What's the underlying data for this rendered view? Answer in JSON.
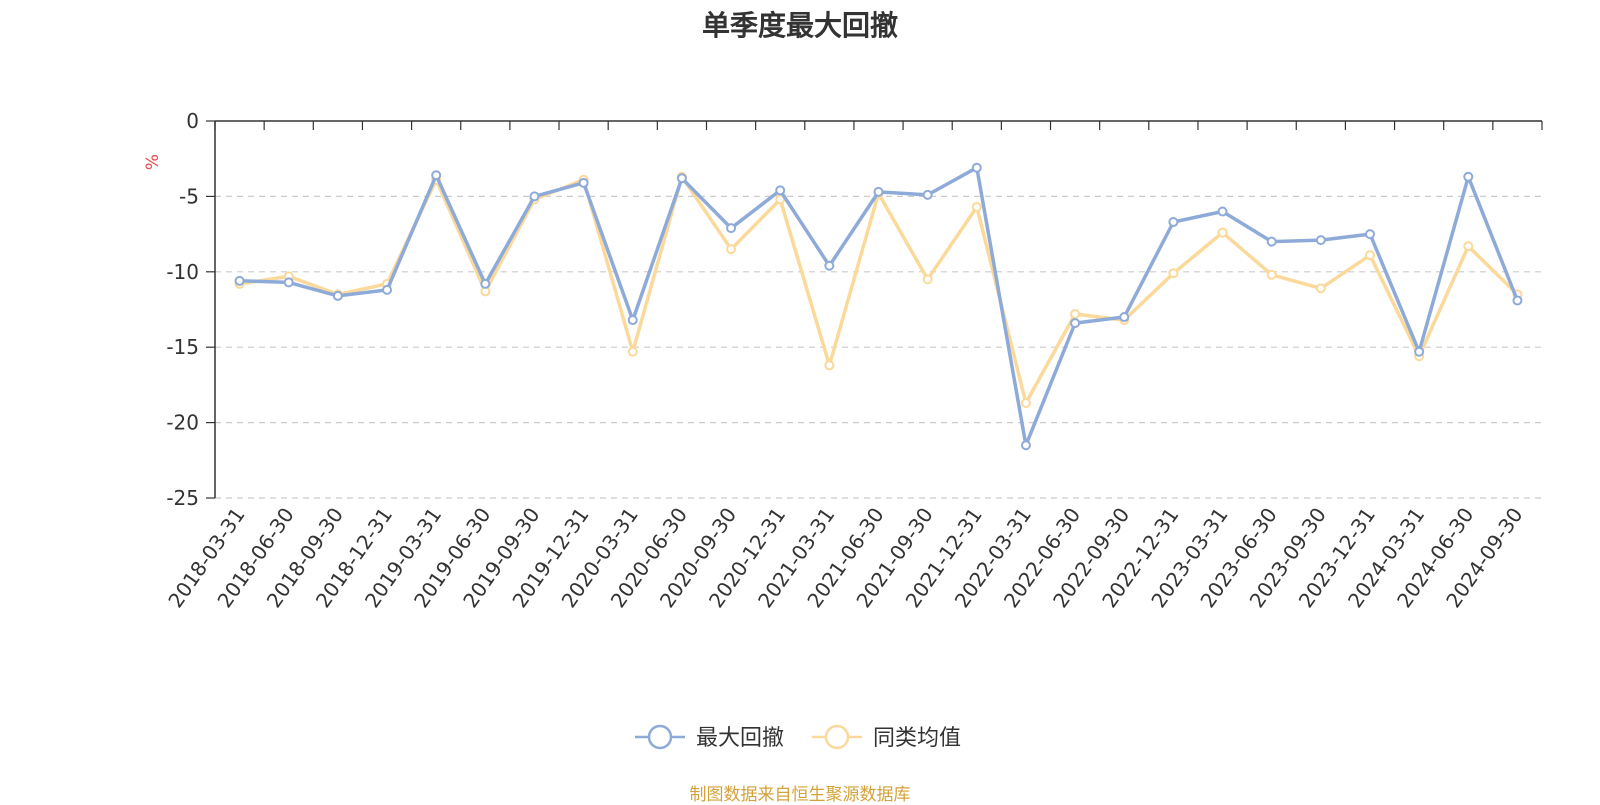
{
  "chart_data": {
    "type": "line",
    "title": "单季度最大回撤",
    "ylabel": "%",
    "ylim": [
      -25,
      0
    ],
    "yticks": [
      0,
      -5,
      -10,
      -15,
      -20,
      -25
    ],
    "grid": true,
    "legend_position": "bottom-center",
    "categories": [
      "2018-03-31",
      "2018-06-30",
      "2018-09-30",
      "2018-12-31",
      "2019-03-31",
      "2019-06-30",
      "2019-09-30",
      "2019-12-31",
      "2020-03-31",
      "2020-06-30",
      "2020-09-30",
      "2020-12-31",
      "2021-03-31",
      "2021-06-30",
      "2021-09-30",
      "2021-12-31",
      "2022-03-31",
      "2022-06-30",
      "2022-09-30",
      "2022-12-31",
      "2023-03-31",
      "2023-06-30",
      "2023-09-30",
      "2023-12-31",
      "2024-03-31",
      "2024-06-30",
      "2024-09-30"
    ],
    "series": [
      {
        "name": "最大回撤",
        "color": "#8eaad8",
        "values": [
          -10.6,
          -10.7,
          -11.6,
          -11.2,
          -3.6,
          -10.8,
          -5.0,
          -4.1,
          -13.2,
          -3.8,
          -7.1,
          -4.6,
          -9.6,
          -4.7,
          -4.9,
          -3.1,
          -21.5,
          -13.4,
          -13.0,
          -6.7,
          -6.0,
          -8.0,
          -7.9,
          -7.5,
          -15.3,
          -3.7,
          -11.9
        ]
      },
      {
        "name": "同类均值",
        "color": "#fbd99a",
        "values": [
          -10.8,
          -10.3,
          -11.5,
          -10.8,
          -3.9,
          -11.3,
          -5.2,
          -3.9,
          -15.3,
          -3.7,
          -8.5,
          -5.2,
          -16.2,
          -4.8,
          -10.5,
          -5.7,
          -18.7,
          -12.8,
          -13.2,
          -10.1,
          -7.4,
          -10.2,
          -11.1,
          -8.9,
          -15.6,
          -8.3,
          -11.5
        ]
      }
    ]
  },
  "footer": {
    "source": "制图数据来自恒生聚源数据库"
  }
}
